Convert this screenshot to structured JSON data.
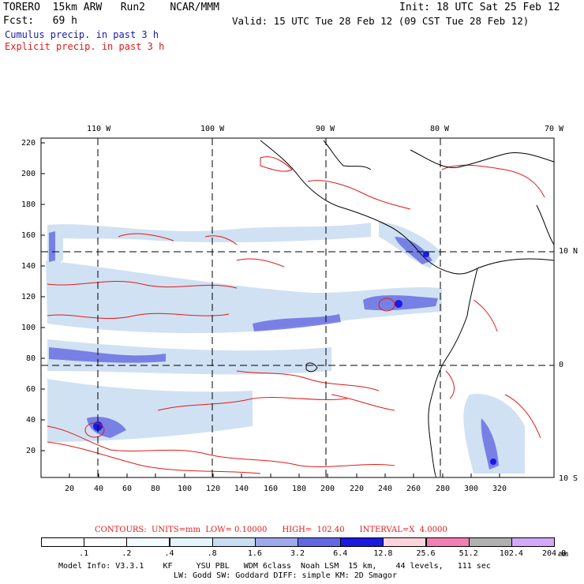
{
  "header": {
    "model": "TORERO  15km ARW   Run2    NCAR/MMM",
    "init": "Init: 18 UTC Sat 25 Feb 12",
    "fcst": "Fcst:   69 h",
    "valid": "Valid: 15 UTC Tue 28 Feb 12 (09 CST Tue 28 Feb 12)",
    "line1": "Cumulus precip. in past 3 h",
    "line2": "Explicit precip. in past 3 h",
    "line1_color": "#1a1aa8",
    "line2_color": "#e01a1a"
  },
  "map": {
    "top_lon_labels": [
      "110 W",
      "100 W",
      "90 W",
      "80 W",
      "70 W"
    ],
    "right_lat_labels": [
      "10 N",
      "0",
      "10 S"
    ],
    "y_ticks": [
      "220",
      "200",
      "180",
      "160",
      "140",
      "120",
      "100",
      "80",
      "60",
      "40",
      "20"
    ],
    "x_ticks": [
      "20",
      "40",
      "60",
      "80",
      "100",
      "120",
      "140",
      "160",
      "180",
      "200",
      "220",
      "240",
      "260",
      "280",
      "300",
      "320"
    ]
  },
  "contours_caption": "CONTOURS:  UNITS=mm  LOW= 0.10000      HIGH=  102.40      INTERVAL=X  4.0000",
  "legend": {
    "labels": [
      ".1",
      ".2",
      ".4",
      ".8",
      "1.6",
      "3.2",
      "6.4",
      "12.8",
      "25.6",
      "51.2",
      "102.4",
      "204.8"
    ],
    "unit": "mm",
    "colors": [
      "#ffffff",
      "#ffffff",
      "#f2fbff",
      "#e4f4fb",
      "#c8dcf2",
      "#a0a8ec",
      "#6268e2",
      "#1a1ae0",
      "#ffd4dc",
      "#f080b4",
      "#b0b0b0",
      "#d2a8f8"
    ]
  },
  "footer": {
    "line1": "Model Info: V3.3.1    KF     YSU PBL   WDM 6class  Noah LSM  15 km,    44 levels,   111 sec",
    "line2": "LW: Godd SW: Goddard DIFF: simple KM: 2D Smagor"
  }
}
